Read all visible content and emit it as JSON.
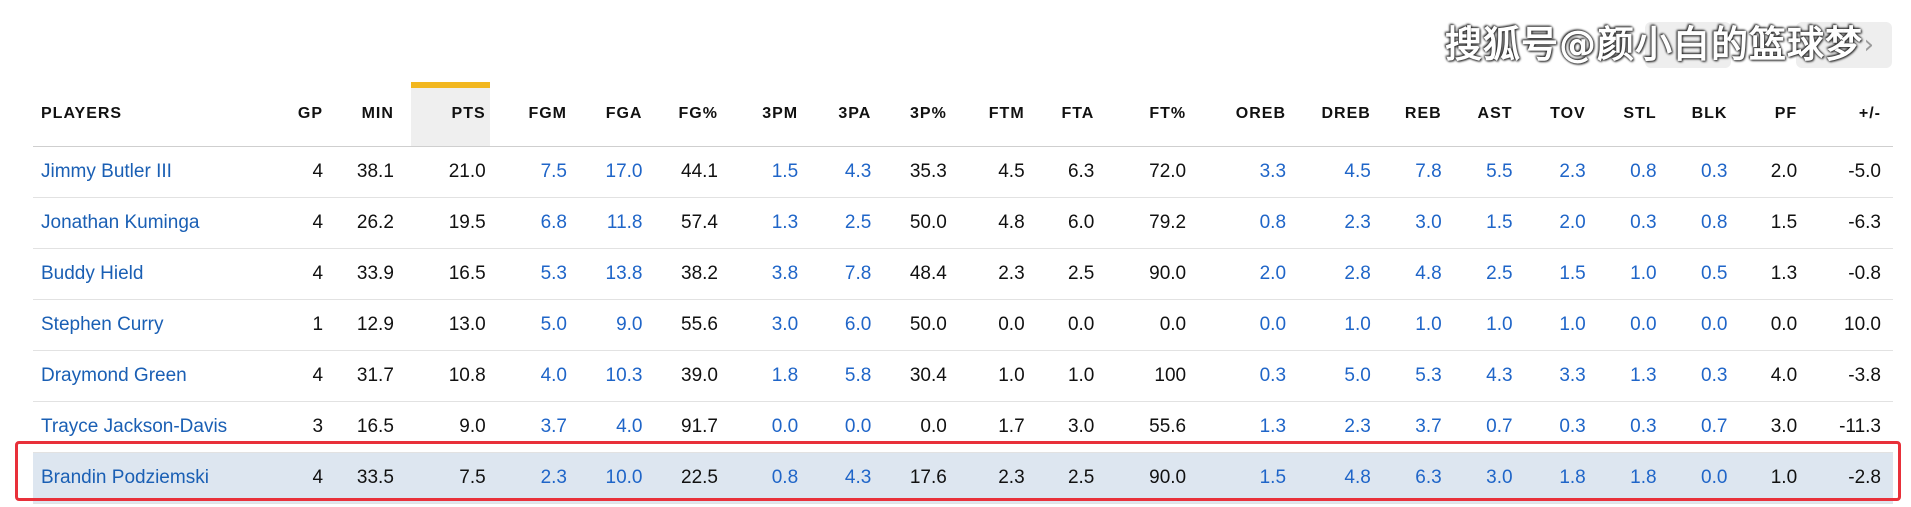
{
  "watermark": "搜狐号@颜小白的篮球梦",
  "nav": {
    "next_icon": "chevron-right-icon",
    "next_glyph": "›"
  },
  "colors": {
    "link": "#1f65c8",
    "accent": "#f2b71f",
    "highlight_border": "#e8303a",
    "highlight_row": "#dde6f0"
  },
  "table": {
    "headers": [
      "PLAYERS",
      "GP",
      "MIN",
      "PTS",
      "FGM",
      "FGA",
      "FG%",
      "3PM",
      "3PA",
      "3P%",
      "FTM",
      "FTA",
      "FT%",
      "OREB",
      "DREB",
      "REB",
      "AST",
      "TOV",
      "STL",
      "BLK",
      "PF",
      "+/-"
    ],
    "sorted_column": "PTS",
    "highlighted_player": "Brandin Podziemski",
    "rows": [
      {
        "cells": [
          "Jimmy Butler III",
          "4",
          "38.1",
          "21.0",
          "7.5",
          "17.0",
          "44.1",
          "1.5",
          "4.3",
          "35.3",
          "4.5",
          "6.3",
          "72.0",
          "3.3",
          "4.5",
          "7.8",
          "5.5",
          "2.3",
          "0.8",
          "0.3",
          "2.0",
          "-5.0"
        ]
      },
      {
        "cells": [
          "Jonathan Kuminga",
          "4",
          "26.2",
          "19.5",
          "6.8",
          "11.8",
          "57.4",
          "1.3",
          "2.5",
          "50.0",
          "4.8",
          "6.0",
          "79.2",
          "0.8",
          "2.3",
          "3.0",
          "1.5",
          "2.0",
          "0.3",
          "0.8",
          "1.5",
          "-6.3"
        ]
      },
      {
        "cells": [
          "Buddy Hield",
          "4",
          "33.9",
          "16.5",
          "5.3",
          "13.8",
          "38.2",
          "3.8",
          "7.8",
          "48.4",
          "2.3",
          "2.5",
          "90.0",
          "2.0",
          "2.8",
          "4.8",
          "2.5",
          "1.5",
          "1.0",
          "0.5",
          "1.3",
          "-0.8"
        ]
      },
      {
        "cells": [
          "Stephen Curry",
          "1",
          "12.9",
          "13.0",
          "5.0",
          "9.0",
          "55.6",
          "3.0",
          "6.0",
          "50.0",
          "0.0",
          "0.0",
          "0.0",
          "0.0",
          "1.0",
          "1.0",
          "1.0",
          "1.0",
          "0.0",
          "0.0",
          "0.0",
          "10.0"
        ]
      },
      {
        "cells": [
          "Draymond Green",
          "4",
          "31.7",
          "10.8",
          "4.0",
          "10.3",
          "39.0",
          "1.8",
          "5.8",
          "30.4",
          "1.0",
          "1.0",
          "100",
          "0.3",
          "5.0",
          "5.3",
          "4.3",
          "3.3",
          "1.3",
          "0.3",
          "4.0",
          "-3.8"
        ]
      },
      {
        "cells": [
          "Trayce Jackson-Davis",
          "3",
          "16.5",
          "9.0",
          "3.7",
          "4.0",
          "91.7",
          "0.0",
          "0.0",
          "0.0",
          "1.7",
          "3.0",
          "55.6",
          "1.3",
          "2.3",
          "3.7",
          "0.7",
          "0.3",
          "0.3",
          "0.7",
          "3.0",
          "-11.3"
        ]
      },
      {
        "cells": [
          "Brandin Podziemski",
          "4",
          "33.5",
          "7.5",
          "2.3",
          "10.0",
          "22.5",
          "0.8",
          "4.3",
          "17.6",
          "2.3",
          "2.5",
          "90.0",
          "1.5",
          "4.8",
          "6.3",
          "3.0",
          "1.8",
          "1.8",
          "0.0",
          "1.0",
          "-2.8"
        ]
      }
    ]
  }
}
